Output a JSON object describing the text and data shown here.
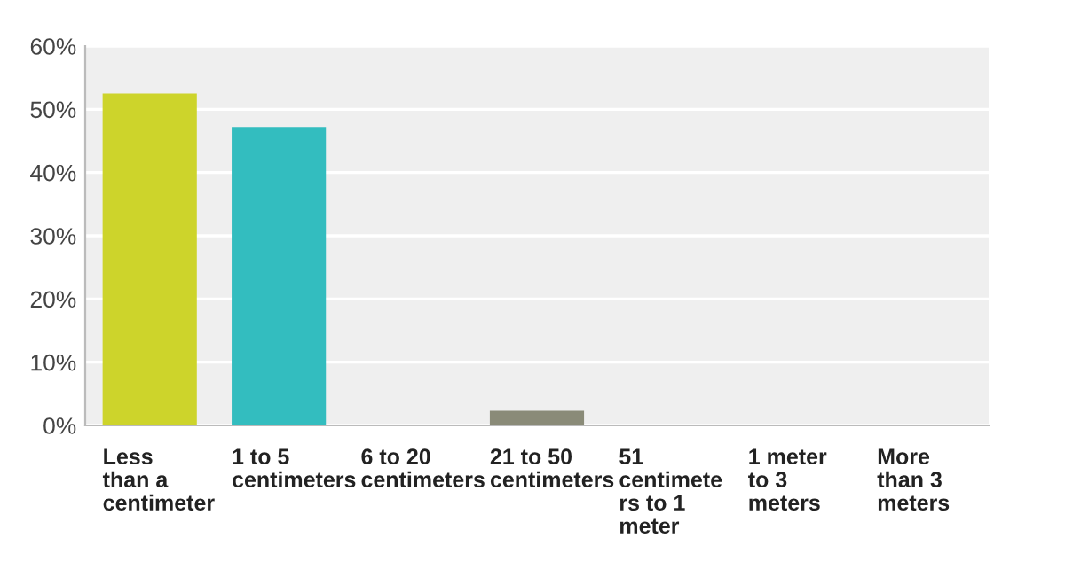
{
  "chart_data": {
    "type": "bar",
    "categories": [
      "Less\nthan a\ncentimeter",
      "1 to 5\ncentimeters",
      "6 to 20\ncentimeters",
      "21 to 50\ncentimeters",
      "51\ncentimete\nrs to 1\nmeter",
      "1 meter\nto 3\nmeters",
      "More\nthan 3\nmeters"
    ],
    "values": [
      52.5,
      47.2,
      0,
      2.3,
      0,
      0,
      0
    ],
    "colors": [
      "#cdd42b",
      "#33bdbf",
      "#cccccc",
      "#8a8b78",
      "#cccccc",
      "#cccccc",
      "#cccccc"
    ],
    "ylim": [
      0,
      60
    ],
    "yticks": [
      {
        "value": 0,
        "label": "0%"
      },
      {
        "value": 10,
        "label": "10%"
      },
      {
        "value": 20,
        "label": "20%"
      },
      {
        "value": 30,
        "label": "30%"
      },
      {
        "value": 40,
        "label": "40%"
      },
      {
        "value": 50,
        "label": "50%"
      },
      {
        "value": 60,
        "label": "60%"
      }
    ],
    "grid": "y"
  }
}
